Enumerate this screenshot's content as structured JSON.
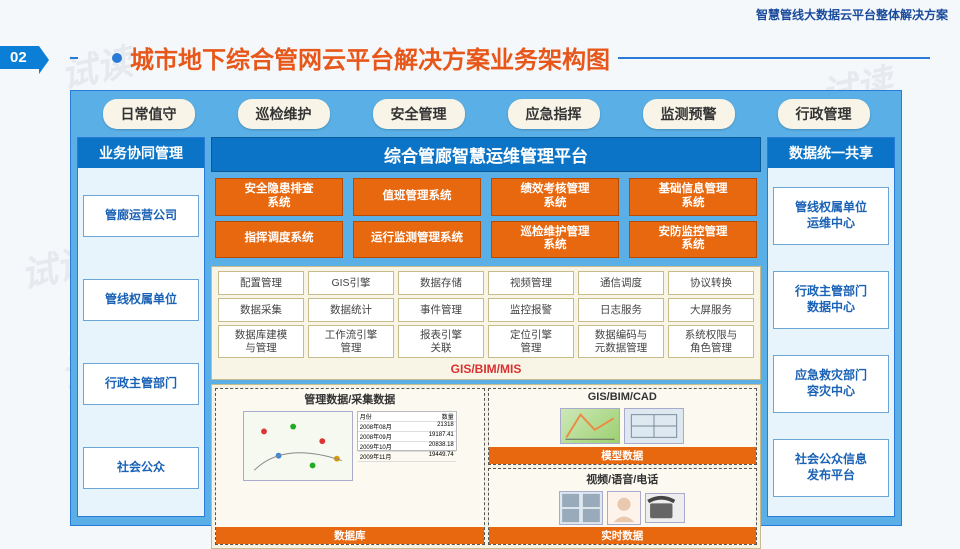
{
  "header_right": "智慧管线大数据云平台整体解决方案",
  "badge": "02",
  "title": "城市地下综合管网云平台解决方案业务架构图",
  "watermark": "试读",
  "colors": {
    "diagram_bg": "#5ab0e6",
    "title_text": "#e8571a",
    "accent_blue": "#0b74c6",
    "orange": "#e8680f",
    "cream": "#f9f5e6",
    "side_item_text": "#1a62b5"
  },
  "top_pills": [
    "日常值守",
    "巡检维护",
    "安全管理",
    "应急指挥",
    "监测预警",
    "行政管理"
  ],
  "left": {
    "title": "业务协同管理",
    "items": [
      "管廊运营公司",
      "管线权属单位",
      "行政主管部门",
      "社会公众"
    ]
  },
  "right": {
    "title": "数据统一共享",
    "items": [
      "管线权属单位\n运维中心",
      "行政主管部门\n数据中心",
      "应急救灾部门\n容灾中心",
      "社会公众信息\n发布平台"
    ]
  },
  "center_title": "综合管廊智慧运维管理平台",
  "orange": [
    "安全隐患排查\n系统",
    "值班管理系统",
    "绩效考核管理\n系统",
    "基础信息管理\n系统",
    "指挥调度系统",
    "运行监测管理系统",
    "巡检维护管理\n系统",
    "安防监控管理\n系统"
  ],
  "cream": [
    "配置管理",
    "GIS引擎",
    "数据存储",
    "视频管理",
    "通信调度",
    "协议转换",
    "数据采集",
    "数据统计",
    "事件管理",
    "监控报警",
    "日志服务",
    "大屏服务",
    "数据库建模\n与管理",
    "工作流引擎\n管理",
    "报表引擎\n关联",
    "定位引擎\n管理",
    "数据编码与\n元数据管理",
    "系统权限与\n角色管理"
  ],
  "gis_label": "GIS/BIM/MIS",
  "bottom": {
    "tl": {
      "title": "GIS/BIM/CAD",
      "foot": "模型数据"
    },
    "tr": {
      "title": "管理数据/采集数据",
      "foot": ""
    },
    "bl": {
      "title": "视频/语音/电话",
      "foot": "实时数据"
    },
    "br": {
      "title": "",
      "foot": "数据库",
      "table_rows": [
        [
          "月份",
          "数量"
        ],
        [
          "2008年08月",
          "21318"
        ],
        [
          "2008年09月",
          "19187.41"
        ],
        [
          "2009年10月",
          "20838.18"
        ],
        [
          "2009年11月",
          "19449.74"
        ]
      ]
    }
  }
}
